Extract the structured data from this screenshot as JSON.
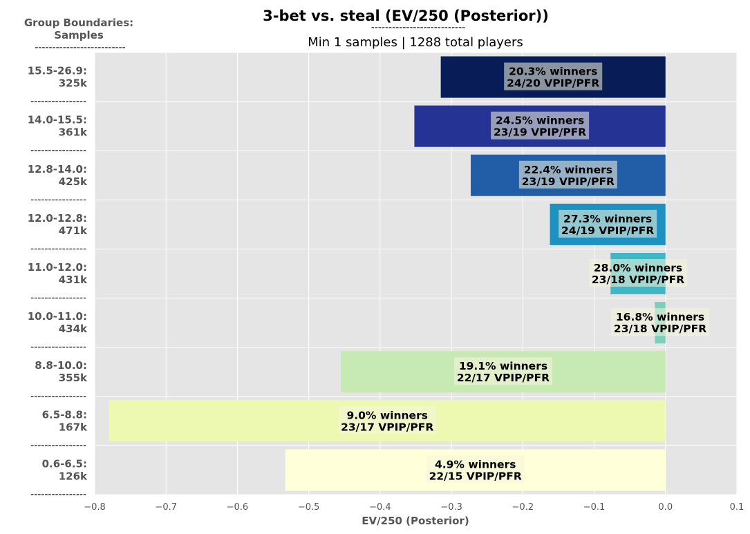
{
  "chart_data": {
    "type": "bar",
    "orientation": "horizontal",
    "title": "3-bet vs. steal (EV/250 (Posterior))",
    "title_underline": "---------------------------",
    "subtitle": "Min 1 samples | 1288 total players",
    "corner_label": {
      "line1": "Group Boundaries:",
      "line2": "Samples",
      "dashes": "--------------------------"
    },
    "separator": "----------------",
    "xlabel": "EV/250 (Posterior)",
    "xlim": [
      -0.8,
      0.1
    ],
    "xticks": [
      "−0.8",
      "−0.7",
      "−0.6",
      "−0.5",
      "−0.4",
      "−0.3",
      "−0.2",
      "−0.1",
      "0.0",
      "0.1"
    ],
    "grid": true,
    "bars": [
      {
        "range": "15.5-26.9:",
        "samples": "325k",
        "value": -0.315,
        "color": "#081d58",
        "winners": "20.3% winners",
        "vpip": "24/20 VPIP/PFR"
      },
      {
        "range": "14.0-15.5:",
        "samples": "361k",
        "value": -0.352,
        "color": "#253494",
        "winners": "24.5% winners",
        "vpip": "23/19 VPIP/PFR"
      },
      {
        "range": "12.8-14.0:",
        "samples": "425k",
        "value": -0.273,
        "color": "#225ea8",
        "winners": "22.4% winners",
        "vpip": "23/19 VPIP/PFR"
      },
      {
        "range": "12.0-12.8:",
        "samples": "471k",
        "value": -0.162,
        "color": "#1d91c0",
        "winners": "27.3% winners",
        "vpip": "24/19 VPIP/PFR"
      },
      {
        "range": "11.0-12.0:",
        "samples": "431k",
        "value": -0.077,
        "color": "#41b6c4",
        "winners": "28.0% winners",
        "vpip": "23/18 VPIP/PFR"
      },
      {
        "range": "10.0-11.0:",
        "samples": "434k",
        "value": -0.015,
        "color": "#7fcdbb",
        "winners": "16.8% winners",
        "vpip": "23/18 VPIP/PFR"
      },
      {
        "range": "8.8-10.0:",
        "samples": "355k",
        "value": -0.455,
        "color": "#c7e9b4",
        "winners": "19.1% winners",
        "vpip": "22/17 VPIP/PFR"
      },
      {
        "range": "6.5-8.8:",
        "samples": "167k",
        "value": -0.78,
        "color": "#edf8b1",
        "winners": "9.0% winners",
        "vpip": "23/17 VPIP/PFR"
      },
      {
        "range": "0.6-6.5:",
        "samples": "126k",
        "value": -0.533,
        "color": "#ffffd9",
        "winners": "4.9% winners",
        "vpip": "22/15 VPIP/PFR"
      }
    ]
  }
}
